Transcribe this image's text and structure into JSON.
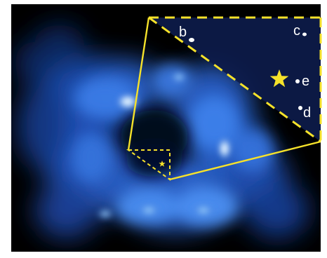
{
  "image": {
    "colors": {
      "background": "#000000",
      "glow_blue": "#2f6bd6",
      "glow_light": "#8fd0ff",
      "outline": "#f6e22a",
      "inset_fill": "#0d1b4a",
      "label": "#ffffff"
    }
  },
  "inset": {
    "planets": [
      {
        "id": "b",
        "label": "b"
      },
      {
        "id": "c",
        "label": "c"
      },
      {
        "id": "d",
        "label": "d"
      },
      {
        "id": "e",
        "label": "e"
      }
    ],
    "star_icon": "star-icon"
  }
}
